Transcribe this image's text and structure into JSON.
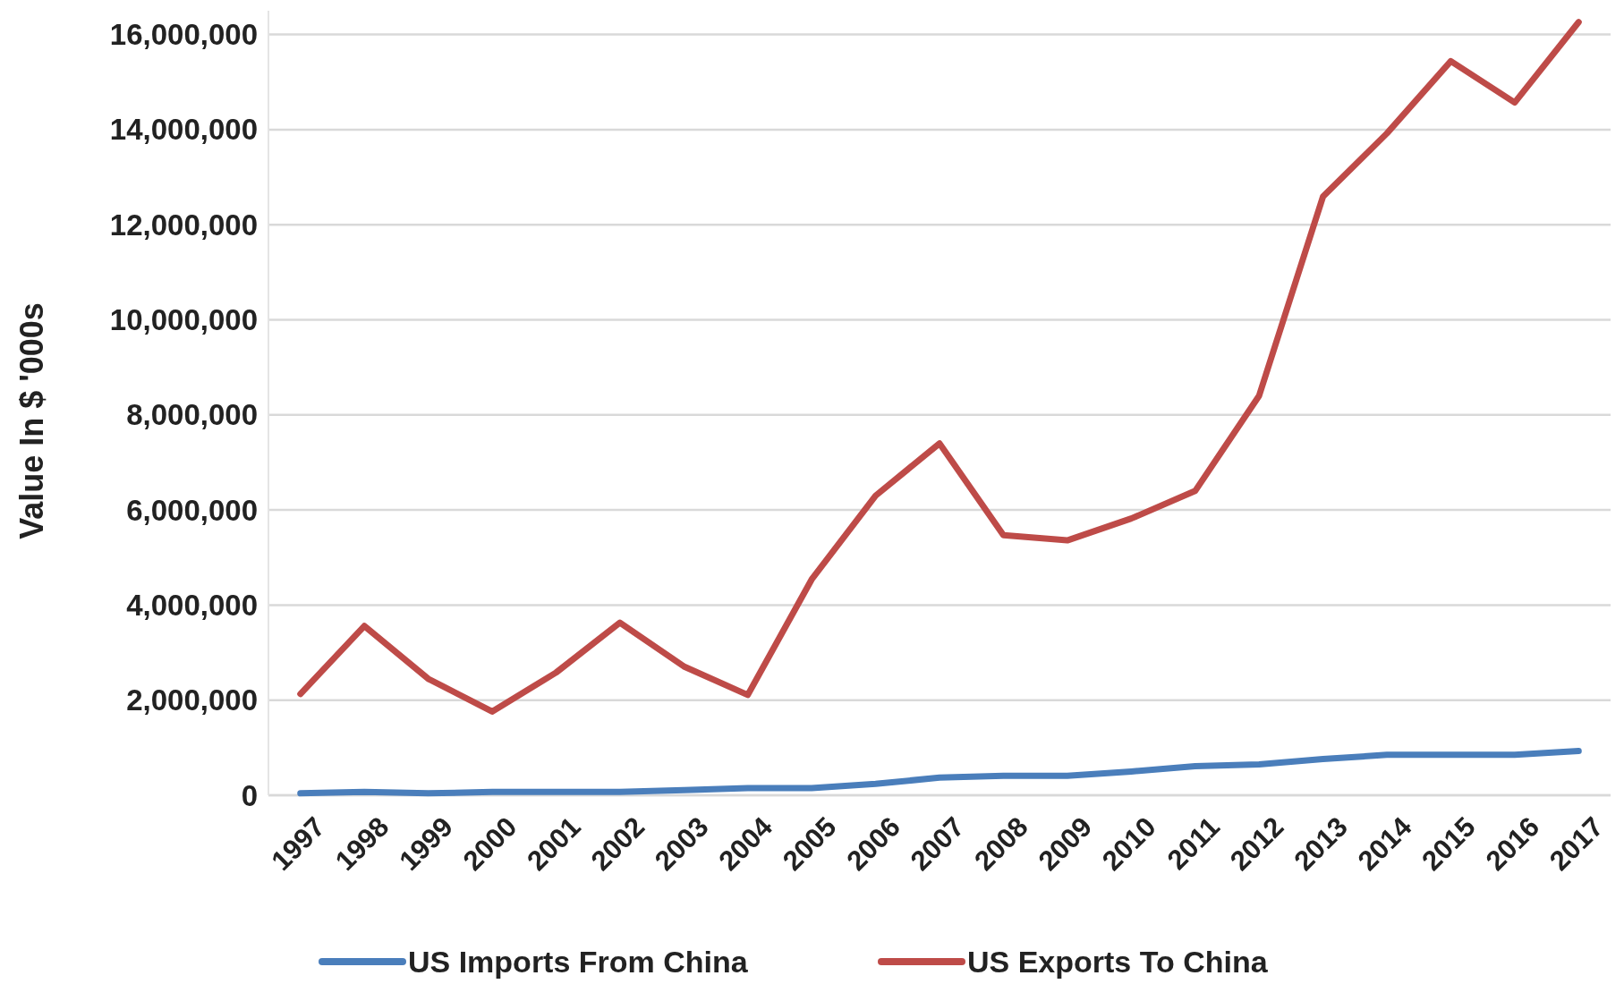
{
  "chart_data": {
    "type": "line",
    "ylabel": "Value In $ '000s",
    "categories": [
      "1997",
      "1998",
      "1999",
      "2000",
      "2001",
      "2002",
      "2003",
      "2004",
      "2005",
      "2006",
      "2007",
      "2008",
      "2009",
      "2010",
      "2011",
      "2012",
      "2013",
      "2014",
      "2015",
      "2016",
      "2017"
    ],
    "series": [
      {
        "name": "US Imports From China",
        "color": "#4a7ebb",
        "values": [
          40000,
          70000,
          40000,
          70000,
          70000,
          70000,
          110000,
          150000,
          150000,
          240000,
          370000,
          410000,
          410000,
          500000,
          610000,
          650000,
          760000,
          850000,
          850000,
          850000,
          930000
        ]
      },
      {
        "name": "US Exports To China",
        "color": "#be4b48",
        "values": [
          2130000,
          3560000,
          2450000,
          1760000,
          2580000,
          3630000,
          2710000,
          2110000,
          4540000,
          6300000,
          7400000,
          5470000,
          5360000,
          5820000,
          6400000,
          8400000,
          12590000,
          13920000,
          15440000,
          14570000,
          16260000
        ]
      }
    ],
    "ylim": [
      0,
      16500000
    ],
    "yticks": [
      {
        "value": 0,
        "label": "0"
      },
      {
        "value": 2000000,
        "label": "2,000,000"
      },
      {
        "value": 4000000,
        "label": "4,000,000"
      },
      {
        "value": 6000000,
        "label": "6,000,000"
      },
      {
        "value": 8000000,
        "label": "8,000,000"
      },
      {
        "value": 10000000,
        "label": "10,000,000"
      },
      {
        "value": 12000000,
        "label": "12,000,000"
      },
      {
        "value": 14000000,
        "label": "14,000,000"
      },
      {
        "value": 16000000,
        "label": "16,000,000"
      }
    ],
    "grid": "y",
    "legend": "bottom",
    "marker": "none",
    "line_style": "solid"
  }
}
